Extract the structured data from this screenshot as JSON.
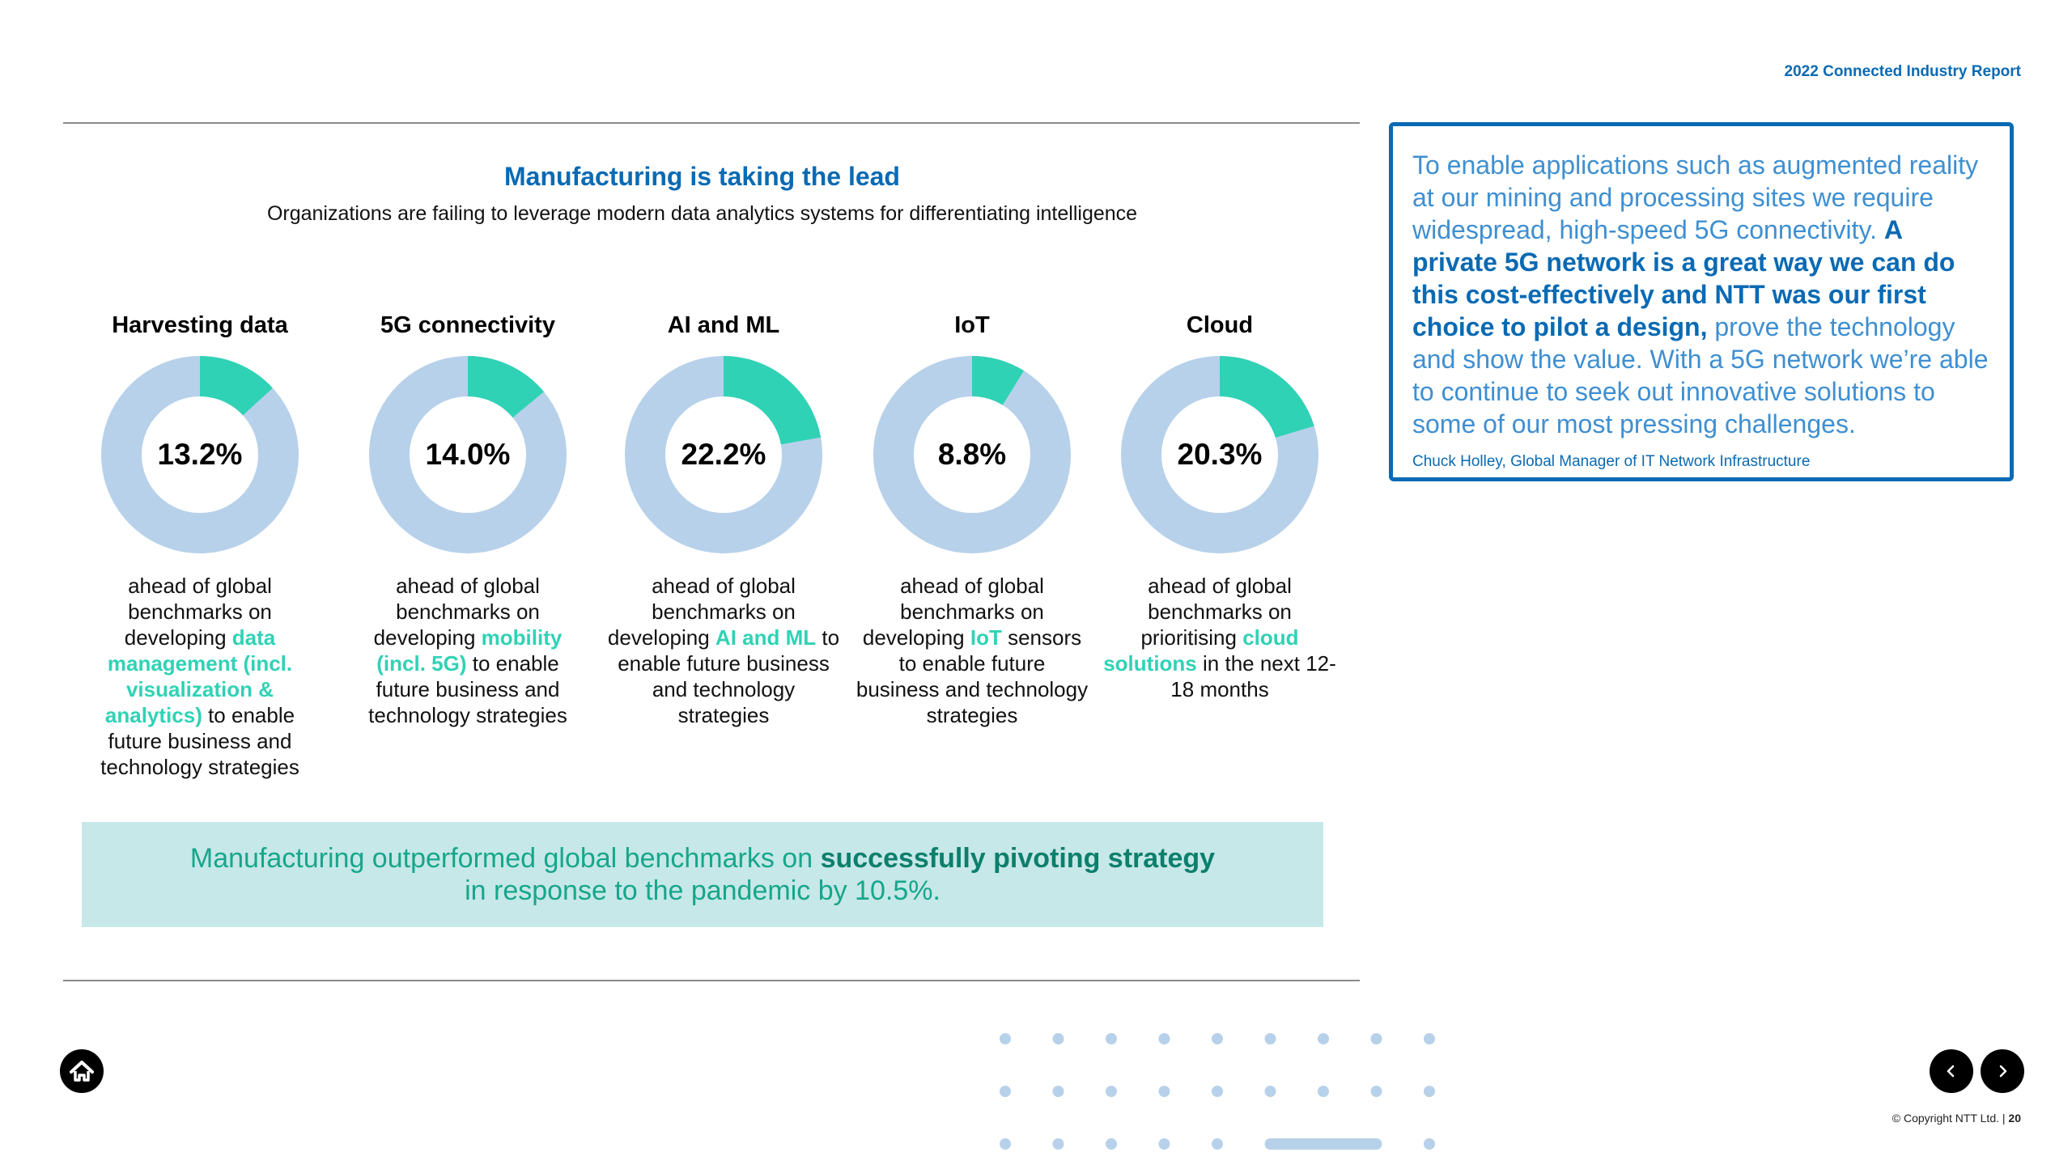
{
  "header": {
    "report_title": "2022 Connected Industry Report"
  },
  "main": {
    "title": "Manufacturing is taking the lead",
    "subtitle": "Organizations are failing to leverage modern data analytics systems for differentiating intelligence",
    "metrics": [
      {
        "title": "Harvesting data",
        "value": 13.2,
        "label": "13.2%",
        "desc_pre": "ahead of global benchmarks on developing ",
        "desc_hl": "data management (incl. visualization & analytics)",
        "desc_post": " to enable future business and technology strategies"
      },
      {
        "title": "5G connectivity",
        "value": 14.0,
        "label": "14.0%",
        "desc_pre": "ahead of global benchmarks on developing ",
        "desc_hl": "mobility (incl. 5G)",
        "desc_post": " to enable future business and technology strategies"
      },
      {
        "title": "AI and ML",
        "value": 22.2,
        "label": "22.2%",
        "desc_pre": "ahead of global benchmarks on developing ",
        "desc_hl": "AI and ML",
        "desc_post": " to enable future business and technology strategies"
      },
      {
        "title": "IoT",
        "value": 8.8,
        "label": "8.8%",
        "desc_pre": "ahead of global benchmarks on developing ",
        "desc_hl": "IoT",
        "desc_post": " sensors to enable future business and technology strategies"
      },
      {
        "title": "Cloud",
        "value": 20.3,
        "label": "20.3%",
        "desc_pre": "ahead of global benchmarks on prioritising ",
        "desc_hl": "cloud solutions",
        "desc_post": " in the next 12-18 months"
      }
    ],
    "banner": {
      "pre": "Manufacturing outperformed global benchmarks on ",
      "strong": "successfully pivoting strategy",
      "line2": "in response to the pandemic by 10.5%."
    }
  },
  "quote": {
    "pre": "To enable applications such as augmented reality at our mining and processing sites we require widespread, high-speed 5G connectivity. ",
    "strong": "A private 5G network is a great way we can do this cost-effectively and NTT was our first choice to pilot a design,",
    "post": " prove the technology and show the value.  With a 5G network we’re able to continue to seek out innovative solutions to some of our most pressing challenges.",
    "author": "Chuck Holley, Global Manager of IT Network Infrastructure"
  },
  "footer": {
    "copyright": "© Copyright NTT Ltd. | ",
    "page_number": "20",
    "home_icon": "home-icon",
    "prev_icon": "chevron-left-icon",
    "next_icon": "chevron-right-icon"
  },
  "colors": {
    "brand_blue": "#0a6ab3",
    "teal_highlight": "#30d2b5",
    "donut_track": "#b8d1ea",
    "banner_bg": "#c6e8e8"
  },
  "chart_data": {
    "type": "pie",
    "categories": [
      "Harvesting data",
      "5G connectivity",
      "AI and ML",
      "IoT",
      "Cloud"
    ],
    "values": [
      13.2,
      14.0,
      22.2,
      8.8,
      20.3
    ],
    "unit": "%"
  }
}
